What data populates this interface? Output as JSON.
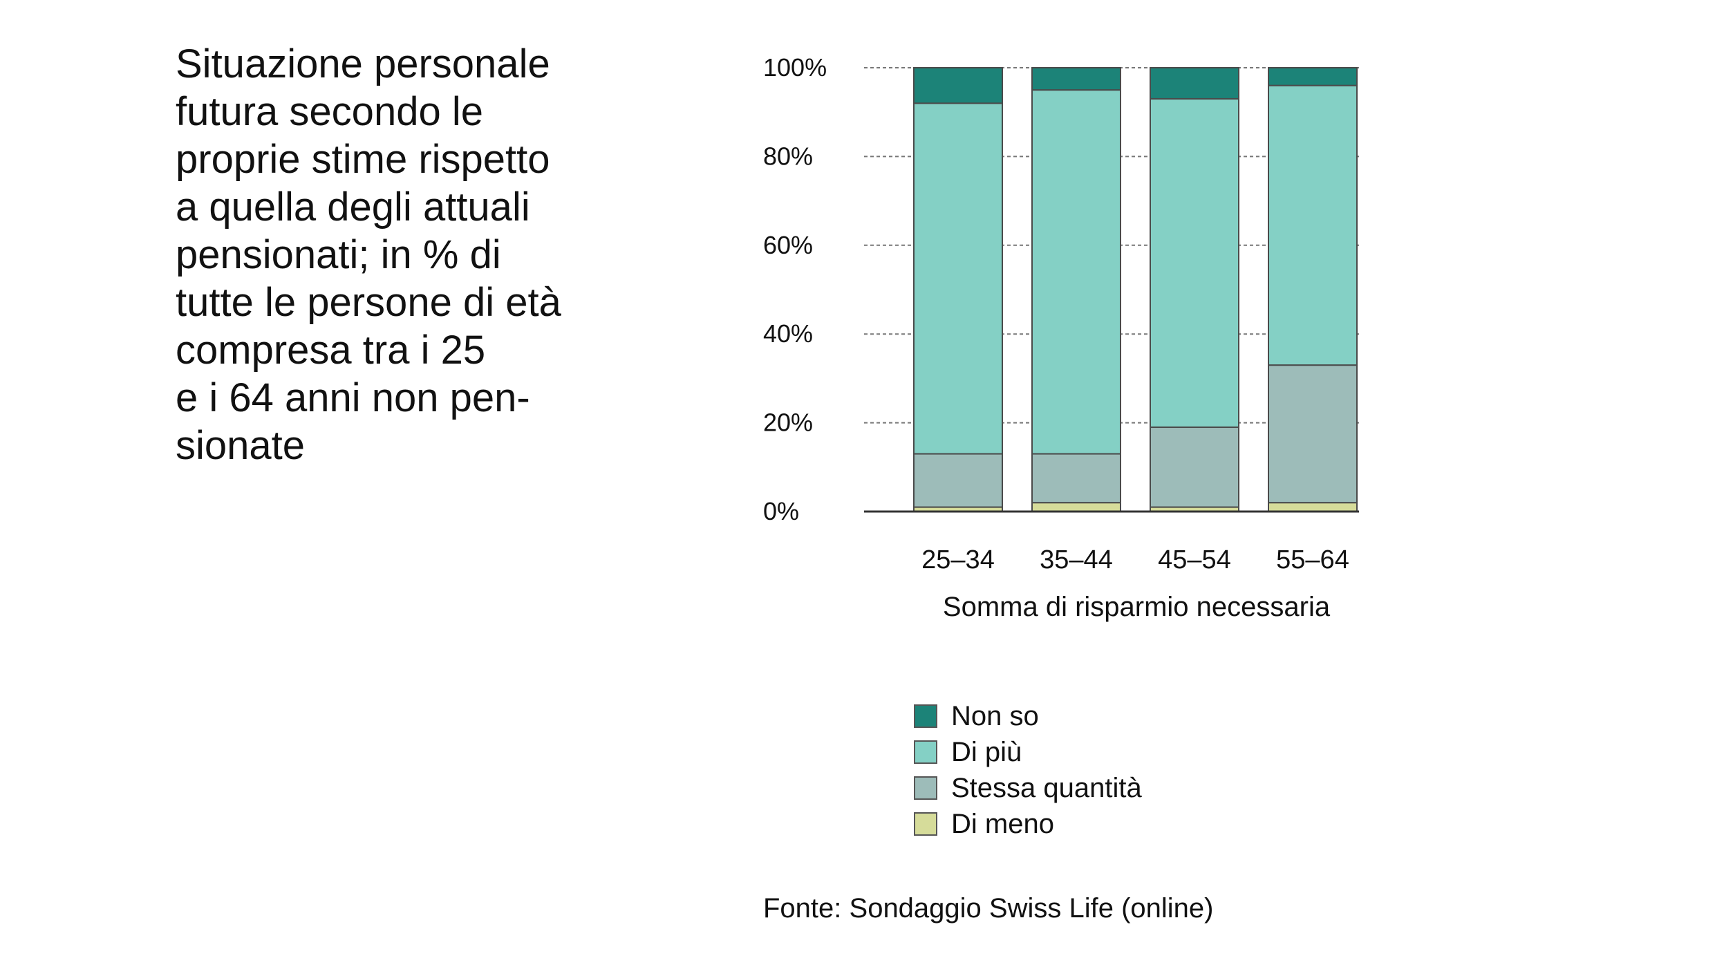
{
  "title_lines": [
    "Situazione personale",
    "futura secondo le",
    "proprie stime rispetto",
    "a quella degli attuali",
    "pensionati; in % di",
    "tutte le persone di età",
    "compresa tra i 25",
    "e i 64 anni non pen-",
    "sionate"
  ],
  "source": "Fonte: Sondaggio Swiss Life (online)",
  "colors": {
    "non_so": "#1c8378",
    "di_piu": "#84d0c5",
    "stessa": "#9dbcb9",
    "di_meno": "#d6dc9a"
  },
  "chart_data": {
    "type": "bar",
    "stacked": true,
    "categories": [
      "25–34",
      "35–44",
      "45–54",
      "55–64"
    ],
    "xlabel": "Somma di risparmio necessaria",
    "ylabel": "",
    "ylim": [
      0,
      100
    ],
    "yticks": [
      {
        "value": 0,
        "label": "0%"
      },
      {
        "value": 20,
        "label": "20%"
      },
      {
        "value": 40,
        "label": "40%"
      },
      {
        "value": 60,
        "label": "60%"
      },
      {
        "value": 80,
        "label": "80%"
      },
      {
        "value": 100,
        "label": "100%"
      }
    ],
    "grid": true,
    "legend_position": "bottom",
    "series": [
      {
        "name": "Di meno",
        "color": "#d6dc9a",
        "values": [
          1,
          2,
          1,
          2
        ]
      },
      {
        "name": "Stessa quantità",
        "color": "#9dbcb9",
        "values": [
          12,
          11,
          18,
          31
        ]
      },
      {
        "name": "Di più",
        "color": "#84d0c5",
        "values": [
          79,
          82,
          74,
          63
        ]
      },
      {
        "name": "Non so",
        "color": "#1c8378",
        "values": [
          8,
          5,
          7,
          4
        ]
      }
    ],
    "legend_order": [
      "Non so",
      "Di più",
      "Stessa quantità",
      "Di meno"
    ]
  }
}
